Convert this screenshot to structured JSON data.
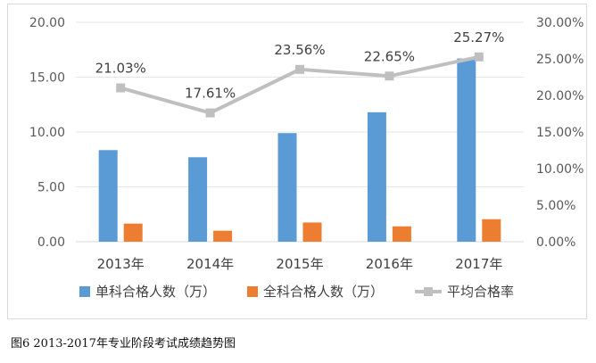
{
  "caption": "图6  2013-2017年专业阶段考试成绩趋势图",
  "chart_data": {
    "type": "bar",
    "categories": [
      "2013年",
      "2014年",
      "2015年",
      "2016年",
      "2017年"
    ],
    "series": [
      {
        "name": "单科合格人数（万）",
        "type": "bar",
        "axis": "left",
        "color": "#5b9bd5",
        "values": [
          8.35,
          7.7,
          9.9,
          11.8,
          16.7
        ]
      },
      {
        "name": "全科合格人数（万）",
        "type": "bar",
        "axis": "left",
        "color": "#ed7d31",
        "values": [
          1.65,
          1.0,
          1.75,
          1.4,
          2.05
        ]
      },
      {
        "name": "平均合格率",
        "type": "line",
        "axis": "right",
        "color": "#bfbfbf",
        "values": [
          21.03,
          17.61,
          23.56,
          22.65,
          25.27
        ],
        "labels": [
          "21.03%",
          "17.61%",
          "23.56%",
          "22.65%",
          "25.27%"
        ]
      }
    ],
    "y_left": {
      "range": [
        0,
        20
      ],
      "ticks": [
        "0.00",
        "5.00",
        "10.00",
        "15.00",
        "20.00"
      ]
    },
    "y_right": {
      "range": [
        0,
        30
      ],
      "ticks": [
        "0.00%",
        "5.00%",
        "10.00%",
        "15.00%",
        "20.00%",
        "25.00%",
        "30.00%"
      ]
    },
    "grid": true,
    "legend": "bottom"
  }
}
